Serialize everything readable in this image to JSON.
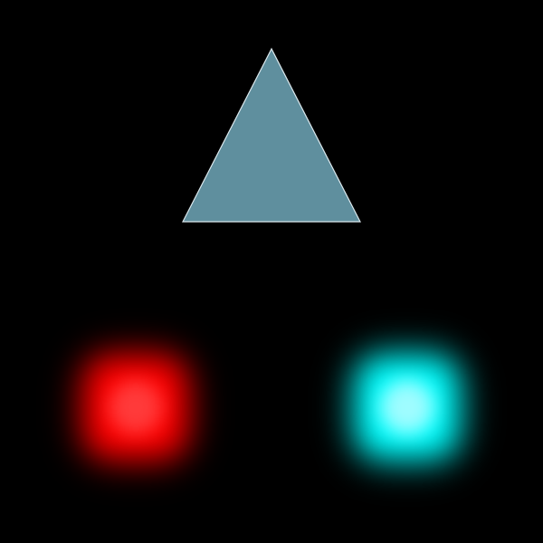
{
  "scene": {
    "background_color": "#000000",
    "triangle": {
      "fill": "#5f8f9e",
      "stroke": "#dce9ee",
      "icon": "triangle-icon"
    },
    "glow_blocks": [
      {
        "name": "red",
        "color": "#ff0000",
        "icon": "red-glow-square-icon"
      },
      {
        "name": "cyan",
        "color": "#00ffff",
        "icon": "cyan-glow-square-icon"
      }
    ]
  }
}
